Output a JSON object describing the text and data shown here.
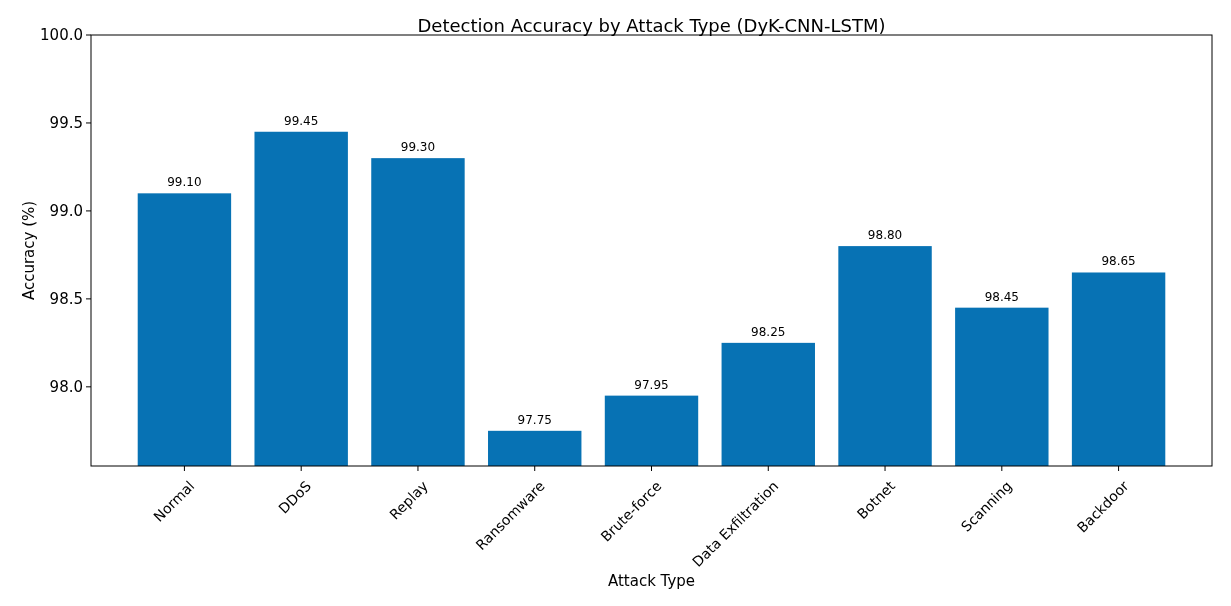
{
  "chart_data": {
    "type": "bar",
    "title": "Detection Accuracy by Attack Type (DyK-CNN-LSTM)",
    "xlabel": "Attack Type",
    "ylabel": "Accuracy (%)",
    "categories": [
      "Normal",
      "DDoS",
      "Replay",
      "Ransomware",
      "Brute-force",
      "Data Exfiltration",
      "Botnet",
      "Scanning",
      "Backdoor"
    ],
    "values": [
      99.1,
      99.45,
      99.3,
      97.75,
      97.95,
      98.25,
      98.8,
      98.45,
      98.65
    ],
    "value_labels": [
      "99.10",
      "99.45",
      "99.30",
      "97.75",
      "97.95",
      "98.25",
      "98.80",
      "98.45",
      "98.65"
    ],
    "color": "#0772b4",
    "ylim": [
      97.55,
      100
    ],
    "yticks": [
      {
        "value": 98,
        "label": "98.0"
      },
      {
        "value": 98.5,
        "label": "98.5"
      },
      {
        "value": 99,
        "label": "99.0"
      },
      {
        "value": 99.5,
        "label": "99.5"
      },
      {
        "value": 100,
        "label": "100.0"
      }
    ],
    "grid": false
  }
}
